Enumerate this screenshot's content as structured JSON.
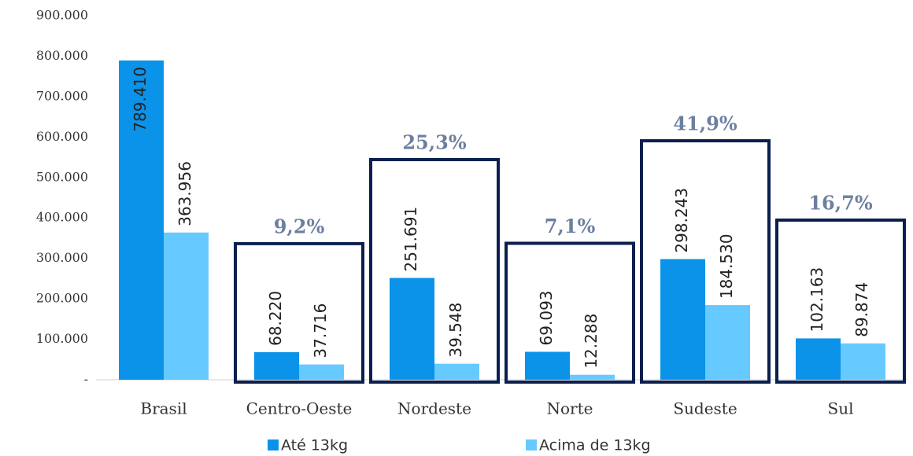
{
  "chart_data": {
    "type": "bar",
    "categories": [
      "Brasil",
      "Centro-Oeste",
      "Nordeste",
      "Norte",
      "Sudeste",
      "Sul"
    ],
    "series": [
      {
        "name": "Até 13kg",
        "color": "#0a93e8",
        "values": [
          789410,
          68220,
          251691,
          69093,
          298243,
          102163
        ],
        "value_labels": [
          "789.410",
          "68.220",
          "251.691",
          "69.093",
          "298.243",
          "102.163"
        ]
      },
      {
        "name": "Acima de 13kg",
        "color": "#66c9ff",
        "values": [
          363956,
          37716,
          39548,
          12288,
          184530,
          89874
        ],
        "value_labels": [
          "363.956",
          "37.716",
          "39.548",
          "12.288",
          "184.530",
          "89.874"
        ]
      }
    ],
    "annotations": [
      null,
      "9,2%",
      "25,3%",
      "7,1%",
      "41,9%",
      "16,7%"
    ],
    "ylim": [
      0,
      900000
    ],
    "yticks": [
      {
        "value": 0,
        "label": "-"
      },
      {
        "value": 100000,
        "label": "100.000"
      },
      {
        "value": 200000,
        "label": "200.000"
      },
      {
        "value": 300000,
        "label": "300.000"
      },
      {
        "value": 400000,
        "label": "400.000"
      },
      {
        "value": 500000,
        "label": "500.000"
      },
      {
        "value": 600000,
        "label": "600.000"
      },
      {
        "value": 700000,
        "label": "700.000"
      },
      {
        "value": 800000,
        "label": "800.000"
      },
      {
        "value": 900000,
        "label": "900.000"
      }
    ],
    "legend": "bottom"
  }
}
